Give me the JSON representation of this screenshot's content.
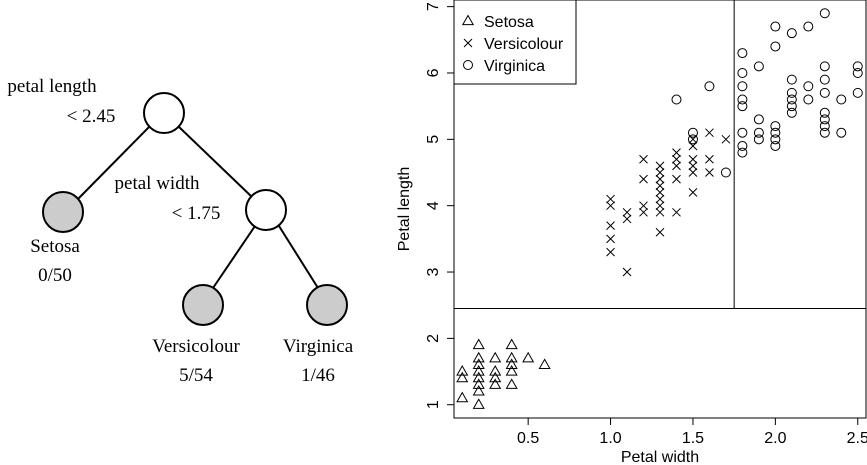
{
  "tree": {
    "root_split": {
      "line1": "petal length",
      "line2": "< 2.45"
    },
    "child_split": {
      "line1": "petal width",
      "line2": "< 1.75"
    },
    "leaves": [
      {
        "class": "Setosa",
        "error": "0/50"
      },
      {
        "class": "Versicolour",
        "error": "5/54"
      },
      {
        "class": "Virginica",
        "error": "1/46"
      }
    ]
  },
  "chart_data": {
    "type": "scatter",
    "xlabel": "Petal width",
    "ylabel": "Petal length",
    "xlim": [
      0.05,
      2.55
    ],
    "ylim": [
      0.8,
      7.1
    ],
    "x_ticks": [
      0.5,
      1.0,
      1.5,
      2.0,
      2.5
    ],
    "x_tick_labels": [
      "0.5",
      "1.0",
      "1.5",
      "2.0",
      "2.5"
    ],
    "y_ticks": [
      1,
      2,
      3,
      4,
      5,
      6,
      7
    ],
    "y_tick_labels": [
      "1",
      "2",
      "3",
      "4",
      "5",
      "6",
      "7"
    ],
    "grid": false,
    "legend_position": "top-left",
    "split_lines": {
      "horizontal_y": 2.45,
      "vertical_x": 1.75
    },
    "series": [
      {
        "name": "Setosa",
        "marker": "triangle",
        "points": [
          [
            0.1,
            1.1
          ],
          [
            0.1,
            1.4
          ],
          [
            0.1,
            1.5
          ],
          [
            0.2,
            1.0
          ],
          [
            0.2,
            1.2
          ],
          [
            0.2,
            1.3
          ],
          [
            0.2,
            1.4
          ],
          [
            0.2,
            1.5
          ],
          [
            0.2,
            1.6
          ],
          [
            0.2,
            1.7
          ],
          [
            0.2,
            1.9
          ],
          [
            0.3,
            1.3
          ],
          [
            0.3,
            1.4
          ],
          [
            0.3,
            1.5
          ],
          [
            0.3,
            1.7
          ],
          [
            0.4,
            1.3
          ],
          [
            0.4,
            1.5
          ],
          [
            0.4,
            1.6
          ],
          [
            0.4,
            1.7
          ],
          [
            0.4,
            1.9
          ],
          [
            0.5,
            1.7
          ],
          [
            0.6,
            1.6
          ]
        ]
      },
      {
        "name": "Versicolour",
        "marker": "cross",
        "points": [
          [
            1.0,
            3.3
          ],
          [
            1.0,
            3.5
          ],
          [
            1.0,
            3.7
          ],
          [
            1.0,
            4.0
          ],
          [
            1.0,
            4.1
          ],
          [
            1.1,
            3.0
          ],
          [
            1.1,
            3.8
          ],
          [
            1.1,
            3.9
          ],
          [
            1.2,
            3.9
          ],
          [
            1.2,
            4.0
          ],
          [
            1.2,
            4.4
          ],
          [
            1.2,
            4.7
          ],
          [
            1.3,
            3.6
          ],
          [
            1.3,
            3.9
          ],
          [
            1.3,
            4.0
          ],
          [
            1.3,
            4.1
          ],
          [
            1.3,
            4.2
          ],
          [
            1.3,
            4.3
          ],
          [
            1.3,
            4.4
          ],
          [
            1.3,
            4.5
          ],
          [
            1.3,
            4.6
          ],
          [
            1.4,
            3.9
          ],
          [
            1.4,
            4.4
          ],
          [
            1.4,
            4.6
          ],
          [
            1.4,
            4.7
          ],
          [
            1.4,
            4.8
          ],
          [
            1.5,
            4.2
          ],
          [
            1.5,
            4.5
          ],
          [
            1.5,
            4.6
          ],
          [
            1.5,
            4.7
          ],
          [
            1.5,
            4.9
          ],
          [
            1.5,
            5.0
          ],
          [
            1.6,
            4.5
          ],
          [
            1.6,
            4.7
          ],
          [
            1.6,
            5.1
          ],
          [
            1.7,
            5.0
          ]
        ]
      },
      {
        "name": "Virginica",
        "marker": "circle",
        "points": [
          [
            1.4,
            5.6
          ],
          [
            1.5,
            5.0
          ],
          [
            1.5,
            5.1
          ],
          [
            1.6,
            5.8
          ],
          [
            1.7,
            4.5
          ],
          [
            1.8,
            4.8
          ],
          [
            1.8,
            4.9
          ],
          [
            1.8,
            5.1
          ],
          [
            1.8,
            5.5
          ],
          [
            1.8,
            5.6
          ],
          [
            1.8,
            5.8
          ],
          [
            1.8,
            6.0
          ],
          [
            1.8,
            6.3
          ],
          [
            1.9,
            5.0
          ],
          [
            1.9,
            5.1
          ],
          [
            1.9,
            5.3
          ],
          [
            1.9,
            6.1
          ],
          [
            2.0,
            4.9
          ],
          [
            2.0,
            5.0
          ],
          [
            2.0,
            5.1
          ],
          [
            2.0,
            5.2
          ],
          [
            2.0,
            6.4
          ],
          [
            2.0,
            6.7
          ],
          [
            2.1,
            5.4
          ],
          [
            2.1,
            5.5
          ],
          [
            2.1,
            5.6
          ],
          [
            2.1,
            5.7
          ],
          [
            2.1,
            5.9
          ],
          [
            2.1,
            6.6
          ],
          [
            2.2,
            5.6
          ],
          [
            2.2,
            5.8
          ],
          [
            2.2,
            6.7
          ],
          [
            2.3,
            5.1
          ],
          [
            2.3,
            5.2
          ],
          [
            2.3,
            5.3
          ],
          [
            2.3,
            5.4
          ],
          [
            2.3,
            5.7
          ],
          [
            2.3,
            5.9
          ],
          [
            2.3,
            6.1
          ],
          [
            2.3,
            6.9
          ],
          [
            2.4,
            5.1
          ],
          [
            2.4,
            5.6
          ],
          [
            2.5,
            5.7
          ],
          [
            2.5,
            6.0
          ],
          [
            2.5,
            6.1
          ]
        ]
      }
    ]
  }
}
